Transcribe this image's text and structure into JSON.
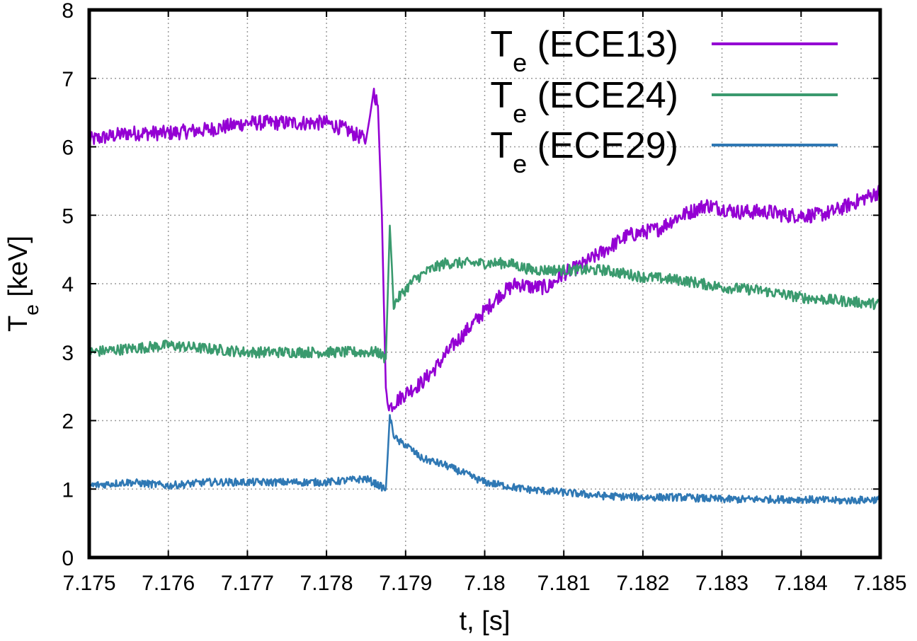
{
  "chart_data": {
    "type": "line",
    "xlabel": "t, [s]",
    "ylabel_main": "T",
    "ylabel_sub": "e",
    "ylabel_rest": " [keV]",
    "xlim": [
      7.175,
      7.185
    ],
    "ylim": [
      0,
      8
    ],
    "x_ticks": [
      "7.175",
      "7.176",
      "7.177",
      "7.178",
      "7.179",
      "7.18",
      "7.181",
      "7.182",
      "7.183",
      "7.184",
      "7.185"
    ],
    "y_ticks": [
      "0",
      "1",
      "2",
      "3",
      "4",
      "5",
      "6",
      "7",
      "8"
    ],
    "grid": true,
    "legend_position": "top-right",
    "series": [
      {
        "name": "ECE13",
        "legend_main": "T",
        "legend_sub": "e",
        "legend_rest": " (ECE13)",
        "color": "#9400d3",
        "x": [
          7.175,
          7.1755,
          7.176,
          7.1765,
          7.177,
          7.1775,
          7.178,
          7.17825,
          7.1785,
          7.1786,
          7.17865,
          7.1787,
          7.17875,
          7.1788,
          7.1789,
          7.179,
          7.1792,
          7.1794,
          7.1796,
          7.1798,
          7.18,
          7.1802,
          7.1804,
          7.1806,
          7.1808,
          7.181,
          7.1812,
          7.1814,
          7.1816,
          7.1818,
          7.182,
          7.1822,
          7.1824,
          7.1826,
          7.1828,
          7.183,
          7.1832,
          7.1834,
          7.1836,
          7.1838,
          7.184,
          7.1842,
          7.1844,
          7.1846,
          7.1848,
          7.185
        ],
        "y": [
          6.1,
          6.2,
          6.2,
          6.25,
          6.35,
          6.35,
          6.35,
          6.25,
          6.1,
          6.8,
          6.6,
          5.0,
          2.4,
          2.2,
          2.3,
          2.4,
          2.55,
          2.8,
          3.1,
          3.35,
          3.6,
          3.85,
          4.0,
          3.95,
          3.95,
          4.15,
          4.25,
          4.4,
          4.55,
          4.7,
          4.75,
          4.8,
          4.95,
          5.05,
          5.15,
          5.1,
          5.05,
          5.05,
          5.05,
          5.0,
          5.0,
          5.0,
          5.05,
          5.15,
          5.25,
          5.35
        ]
      },
      {
        "name": "ECE24",
        "legend_main": "T",
        "legend_sub": "e",
        "legend_rest": " (ECE24)",
        "color": "#3a9a6e",
        "x": [
          7.175,
          7.1755,
          7.176,
          7.1765,
          7.177,
          7.1775,
          7.178,
          7.1785,
          7.17865,
          7.17875,
          7.1788,
          7.17885,
          7.17895,
          7.1791,
          7.1793,
          7.1795,
          7.1797,
          7.18,
          7.1803,
          7.1806,
          7.181,
          7.1815,
          7.182,
          7.1825,
          7.183,
          7.1835,
          7.184,
          7.1845,
          7.185
        ],
        "y": [
          3.0,
          3.05,
          3.1,
          3.05,
          3.0,
          3.0,
          3.0,
          3.0,
          3.0,
          2.9,
          4.85,
          3.7,
          3.85,
          4.05,
          4.2,
          4.3,
          4.3,
          4.3,
          4.3,
          4.2,
          4.2,
          4.2,
          4.1,
          4.05,
          3.95,
          3.9,
          3.8,
          3.75,
          3.7
        ]
      },
      {
        "name": "ECE29",
        "legend_main": "T",
        "legend_sub": "e",
        "legend_rest": " (ECE29)",
        "color": "#2f78b4",
        "x": [
          7.175,
          7.1755,
          7.176,
          7.1765,
          7.177,
          7.1775,
          7.178,
          7.1785,
          7.17875,
          7.1788,
          7.17885,
          7.1789,
          7.179,
          7.1792,
          7.1795,
          7.1798,
          7.18,
          7.1805,
          7.181,
          7.1815,
          7.182,
          7.1825,
          7.183,
          7.1835,
          7.184,
          7.1845,
          7.185
        ],
        "y": [
          1.05,
          1.1,
          1.05,
          1.1,
          1.1,
          1.1,
          1.1,
          1.15,
          1.0,
          2.05,
          1.8,
          1.7,
          1.65,
          1.45,
          1.35,
          1.2,
          1.1,
          1.0,
          0.95,
          0.9,
          0.88,
          0.88,
          0.85,
          0.85,
          0.85,
          0.83,
          0.85
        ]
      }
    ]
  }
}
